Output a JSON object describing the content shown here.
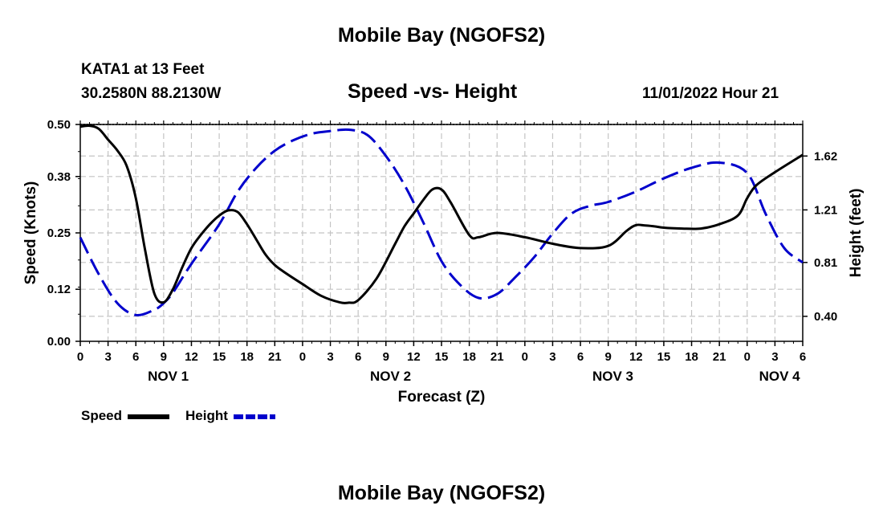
{
  "page": {
    "top_title": "Mobile Bay (NGOFS2)",
    "bottom_title": "Mobile Bay (NGOFS2)",
    "station": "KATA1 at 13 Feet",
    "coords": "30.2580N  88.2130W",
    "subtitle": "Speed -vs- Height",
    "timestamp": "11/01/2022 Hour 21"
  },
  "chart_data": {
    "type": "line",
    "title": "Speed -vs- Height",
    "xlabel": "Forecast (Z)",
    "ylabel": "Speed (Knots)",
    "y2label": "Height (feet)",
    "xlim": [
      0,
      78
    ],
    "ylim": [
      0,
      0.5
    ],
    "y2lim": [
      0.21,
      1.86
    ],
    "x_tick_values": [
      0,
      3,
      6,
      9,
      12,
      15,
      18,
      21,
      24,
      27,
      30,
      33,
      36,
      39,
      42,
      45,
      48,
      51,
      54,
      57,
      60,
      63,
      66,
      69,
      72,
      75,
      78
    ],
    "x_tick_labels": [
      "0",
      "3",
      "6",
      "9",
      "12",
      "15",
      "18",
      "21",
      "0",
      "3",
      "6",
      "9",
      "12",
      "15",
      "18",
      "21",
      "0",
      "3",
      "6",
      "9",
      "12",
      "15",
      "18",
      "21",
      "0",
      "3",
      "6"
    ],
    "date_labels": [
      {
        "label": "NOV 1",
        "x": 9.5
      },
      {
        "label": "NOV 2",
        "x": 33.5
      },
      {
        "label": "NOV 3",
        "x": 57.5
      },
      {
        "label": "NOV 4",
        "x": 75.5
      }
    ],
    "y_ticks": [
      0.0,
      0.12,
      0.25,
      0.38,
      0.5
    ],
    "y_tick_labels": [
      "0.00",
      "0.12",
      "0.25",
      "0.38",
      "0.50"
    ],
    "y2_ticks": [
      0.4,
      0.81,
      1.21,
      1.62
    ],
    "y2_tick_labels": [
      "0.40",
      "0.81",
      "1.21",
      "1.62"
    ],
    "series": [
      {
        "name": "Speed",
        "color": "#000000",
        "dash": "solid",
        "axis": "left",
        "x": [
          0,
          1,
          2,
          3,
          4,
          5,
          6,
          7,
          8,
          9,
          10,
          11,
          12,
          13,
          14,
          15,
          16,
          17,
          18,
          19,
          20,
          21,
          22,
          24,
          26,
          28,
          29,
          30,
          32,
          34,
          35,
          36,
          37,
          38,
          39,
          40,
          42,
          43,
          45,
          48,
          51,
          54,
          57,
          59,
          60,
          61,
          62,
          63,
          65,
          67,
          69,
          71,
          72,
          73,
          75,
          78
        ],
        "values": [
          0.495,
          0.497,
          0.49,
          0.465,
          0.44,
          0.405,
          0.33,
          0.21,
          0.11,
          0.09,
          0.12,
          0.17,
          0.215,
          0.245,
          0.27,
          0.29,
          0.302,
          0.298,
          0.27,
          0.235,
          0.2,
          0.176,
          0.16,
          0.132,
          0.105,
          0.09,
          0.089,
          0.095,
          0.145,
          0.225,
          0.265,
          0.295,
          0.325,
          0.35,
          0.35,
          0.32,
          0.245,
          0.24,
          0.25,
          0.24,
          0.225,
          0.215,
          0.22,
          0.255,
          0.268,
          0.267,
          0.265,
          0.262,
          0.26,
          0.26,
          0.27,
          0.29,
          0.33,
          0.36,
          0.39,
          0.43
        ]
      },
      {
        "name": "Height",
        "color": "#0000cc",
        "dash": "dashed",
        "axis": "right",
        "x": [
          0,
          2,
          4,
          6,
          8,
          9,
          10,
          12,
          15,
          17,
          19,
          21,
          23,
          25,
          27,
          29,
          31,
          33,
          35,
          37,
          39,
          41,
          43,
          45,
          47,
          49,
          51,
          53,
          55,
          57,
          60,
          63,
          66,
          69,
          72,
          74,
          76,
          78
        ],
        "values": [
          1.0,
          0.72,
          0.5,
          0.41,
          0.45,
          0.5,
          0.58,
          0.8,
          1.1,
          1.35,
          1.53,
          1.66,
          1.74,
          1.79,
          1.81,
          1.82,
          1.78,
          1.62,
          1.4,
          1.12,
          0.82,
          0.64,
          0.54,
          0.57,
          0.7,
          0.85,
          1.03,
          1.18,
          1.24,
          1.27,
          1.35,
          1.45,
          1.53,
          1.57,
          1.49,
          1.18,
          0.92,
          0.81
        ]
      }
    ],
    "legend": [
      "Speed",
      "Height"
    ],
    "legend_position": "bottom-left",
    "grid": true
  }
}
